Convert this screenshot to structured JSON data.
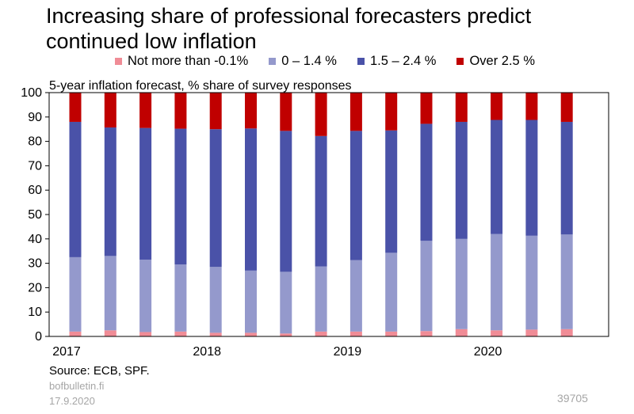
{
  "chart_data": {
    "type": "bar",
    "stacked": true,
    "title": "Increasing share of professional forecasters predict continued low inflation",
    "ylabel": "5-year inflation forecast, % share of survey responses",
    "ylim": [
      0,
      100
    ],
    "yticks": [
      0,
      10,
      20,
      30,
      40,
      50,
      60,
      70,
      80,
      90,
      100
    ],
    "xtick_labels": [
      "2017",
      "2018",
      "2019",
      "2020"
    ],
    "categories": [
      "2017Q1",
      "2017Q2",
      "2017Q3",
      "2017Q4",
      "2018Q1",
      "2018Q2",
      "2018Q3",
      "2018Q4",
      "2019Q1",
      "2019Q2",
      "2019Q3",
      "2019Q4",
      "2020Q1",
      "2020Q2",
      "2020Q3"
    ],
    "series": [
      {
        "name": "Not more than -0.1%",
        "color": "#f08c96",
        "values": [
          2.0,
          2.5,
          1.8,
          2.0,
          1.5,
          1.5,
          1.2,
          2.0,
          2.0,
          2.0,
          2.2,
          3.0,
          2.5,
          2.8,
          3.0
        ]
      },
      {
        "name": "0 – 1.4 %",
        "color": "#9499cc",
        "values": [
          30.5,
          30.5,
          29.7,
          27.5,
          27.0,
          25.5,
          25.3,
          26.7,
          29.3,
          32.3,
          37.0,
          37.0,
          39.5,
          38.5,
          38.8
        ]
      },
      {
        "name": "1.5 – 2.4 %",
        "color": "#4a52a8",
        "values": [
          55.5,
          52.7,
          54.0,
          55.7,
          56.5,
          58.3,
          57.8,
          53.5,
          53.0,
          50.2,
          48.0,
          48.0,
          46.8,
          47.5,
          46.2
        ]
      },
      {
        "name": "Over 2.5 %",
        "color": "#c00000",
        "values": [
          12.0,
          14.3,
          14.5,
          14.8,
          15.0,
          14.7,
          15.7,
          17.8,
          15.7,
          15.5,
          12.8,
          12.0,
          11.2,
          11.2,
          12.0
        ]
      }
    ]
  },
  "footer": {
    "source": "Source: ECB, SPF.",
    "site": "bofbulletin.fi",
    "date": "17.9.2020",
    "chart_id": "39705"
  }
}
